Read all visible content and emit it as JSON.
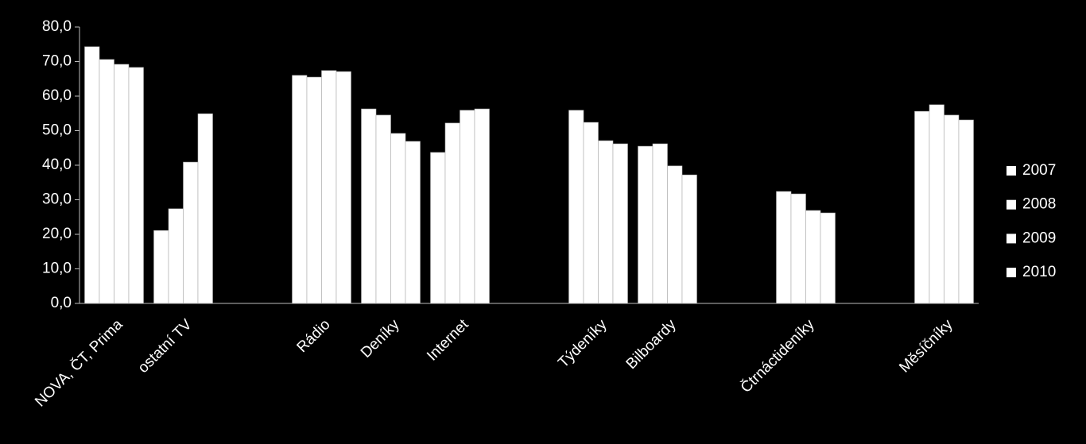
{
  "chart_data": {
    "type": "bar",
    "categories": [
      "NOVA, ČT, Prima",
      "ostatní TV",
      null,
      "Rádio",
      "Deníky",
      "Internet",
      null,
      "Týdeníky",
      "Bilboardy",
      null,
      "Čtrnáctideníky",
      null,
      "Měsíčníky"
    ],
    "series": [
      {
        "name": "2007",
        "color": "#ffffff",
        "values": [
          74.3,
          21.1,
          null,
          66.0,
          56.3,
          43.7,
          null,
          55.9,
          45.5,
          null,
          32.4,
          null,
          55.6
        ]
      },
      {
        "name": "2008",
        "color": "#ffffff",
        "values": [
          70.6,
          27.4,
          null,
          65.5,
          54.5,
          52.2,
          null,
          52.4,
          46.2,
          null,
          31.7,
          null,
          57.5
        ]
      },
      {
        "name": "2009",
        "color": "#ffffff",
        "values": [
          69.2,
          40.9,
          null,
          67.4,
          49.2,
          55.9,
          null,
          47.1,
          39.8,
          null,
          26.9,
          null,
          54.5
        ]
      },
      {
        "name": "2010",
        "color": "#ffffff",
        "values": [
          68.3,
          54.9,
          null,
          67.1,
          46.9,
          56.3,
          null,
          46.2,
          37.2,
          null,
          26.2,
          null,
          53.1
        ]
      }
    ],
    "ylim": [
      0,
      80
    ],
    "yticks": [
      {
        "value": 0,
        "label": "0,0"
      },
      {
        "value": 10,
        "label": "10,0"
      },
      {
        "value": 20,
        "label": "20,0"
      },
      {
        "value": 30,
        "label": "30,0"
      },
      {
        "value": 40,
        "label": "40,0"
      },
      {
        "value": 50,
        "label": "50,0"
      },
      {
        "value": 60,
        "label": "60,0"
      },
      {
        "value": 70,
        "label": "70,0"
      },
      {
        "value": 80,
        "label": "80,0"
      }
    ],
    "legend": "right"
  }
}
